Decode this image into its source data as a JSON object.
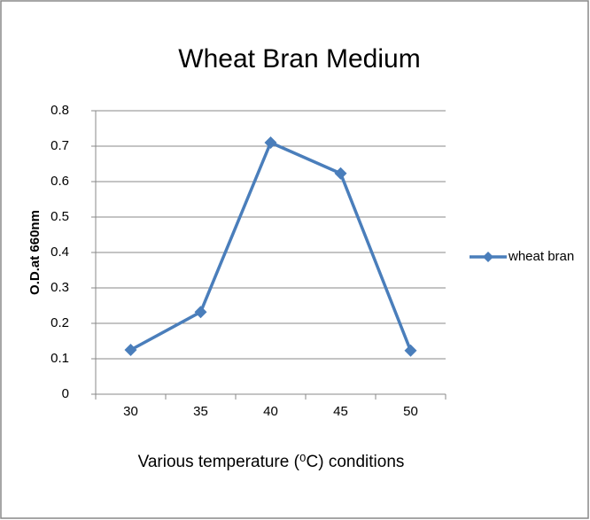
{
  "chart_data": {
    "type": "line",
    "title": "Wheat Bran Medium",
    "x_label": "Various temperature (⁰C) conditions",
    "y_label": "O.D.at 660nm",
    "categories": [
      "30",
      "35",
      "40",
      "45",
      "50"
    ],
    "series": [
      {
        "name": "wheat bran",
        "color": "#4a7ebb",
        "values": [
          0.125,
          0.232,
          0.71,
          0.623,
          0.123
        ]
      }
    ],
    "ylim": [
      0,
      0.8
    ],
    "yticks": [
      0,
      0.1,
      0.2,
      0.3,
      0.4,
      0.5,
      0.6,
      0.7,
      0.8
    ],
    "grid": true,
    "legend": "right"
  }
}
